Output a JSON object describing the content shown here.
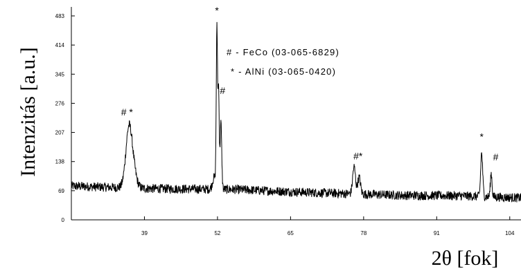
{
  "chart_data": {
    "type": "line",
    "xlabel": "2θ [fok]",
    "ylabel": "Intenzitás [a.u.]",
    "xlim": [
      26,
      106
    ],
    "ylim": [
      0,
      483
    ],
    "x_ticks": [
      39,
      52,
      65,
      78,
      91,
      104
    ],
    "y_ticks": [
      0,
      69,
      138,
      207,
      276,
      345,
      414,
      483
    ],
    "grid": false,
    "legend": {
      "position": "top-center",
      "entries": [
        "# - FeCo (03-065-6829)",
        "* - AlNi (03-065-0420)"
      ]
    },
    "series": [
      {
        "baseline_points": [
          [
            26,
            80
          ],
          [
            40,
            74
          ],
          [
            55,
            72
          ],
          [
            70,
            64
          ],
          [
            85,
            58
          ],
          [
            95,
            57
          ],
          [
            106,
            52
          ]
        ],
        "peaks": [
          {
            "x": 36.2,
            "y": 200,
            "width": 0.55
          },
          {
            "x": 36.9,
            "y": 120,
            "width": 0.6
          },
          {
            "x": 51.4,
            "y": 100,
            "width": 0.3
          },
          {
            "x": 51.9,
            "y": 450,
            "width": 0.12
          },
          {
            "x": 52.2,
            "y": 300,
            "width": 0.1
          },
          {
            "x": 52.6,
            "y": 230,
            "width": 0.15
          },
          {
            "x": 76.3,
            "y": 125,
            "width": 0.25
          },
          {
            "x": 77.2,
            "y": 100,
            "width": 0.25
          },
          {
            "x": 99.0,
            "y": 158,
            "width": 0.18
          },
          {
            "x": 100.7,
            "y": 110,
            "width": 0.15
          }
        ]
      }
    ],
    "annotations": [
      {
        "text": "*",
        "x": 51.9,
        "y": 488
      },
      {
        "text": "#",
        "x": 52.9,
        "y": 298
      },
      {
        "text": "# *",
        "x": 35.9,
        "y": 247
      },
      {
        "text": "#*",
        "x": 77.0,
        "y": 143
      },
      {
        "text": "*",
        "x": 99.0,
        "y": 189
      },
      {
        "text": "#",
        "x": 101.5,
        "y": 141
      }
    ],
    "colors": {
      "line": "#000000",
      "axis": "#000000"
    }
  }
}
